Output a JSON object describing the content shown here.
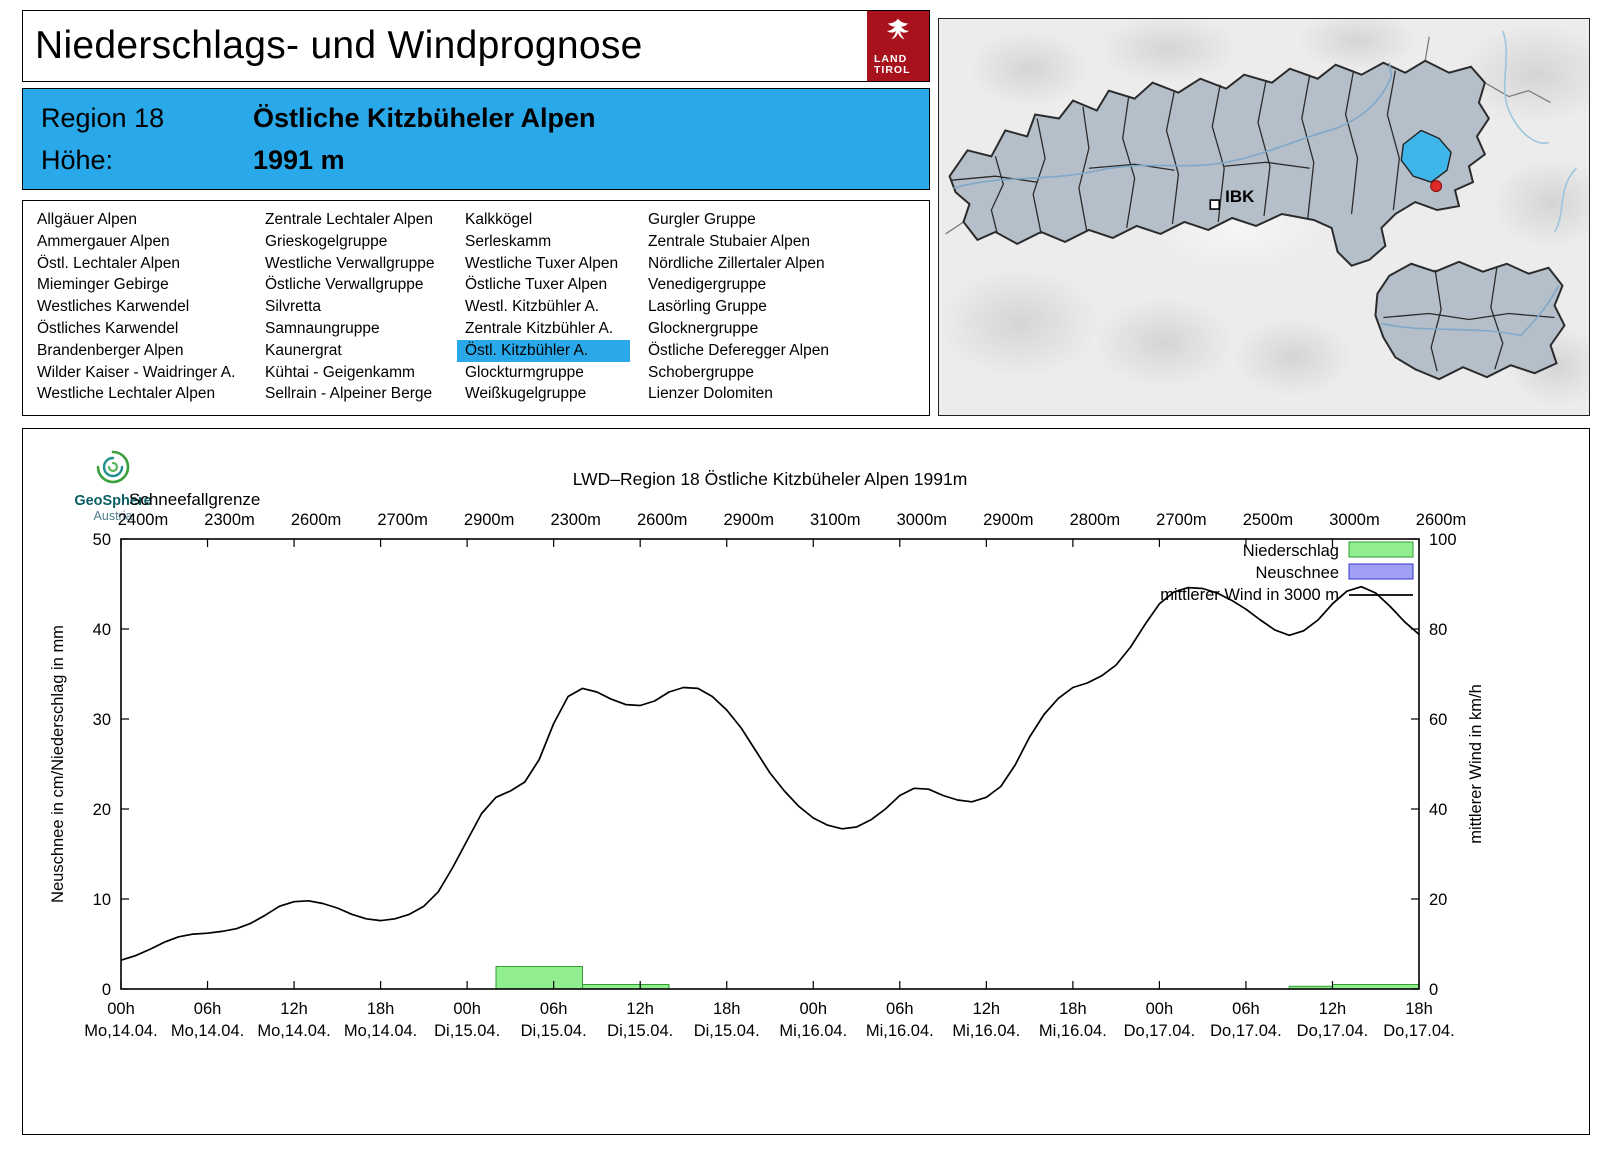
{
  "header": {
    "title": "Niederschlags- und Windprognose",
    "logo_line1": "LAND",
    "logo_line2": "TIROL"
  },
  "region_info": {
    "region_label": "Region 18",
    "region_name": "Östliche Kitzbüheler Alpen",
    "elevation_label": "Höhe:",
    "elevation_value": "1991 m"
  },
  "region_list": {
    "selected_col": 2,
    "selected_row": 6,
    "columns": [
      [
        "Allgäuer Alpen",
        "Ammergauer Alpen",
        "Östl. Lechtaler Alpen",
        "Mieminger Gebirge",
        "Westliches Karwendel",
        "Östliches Karwendel",
        "Brandenberger Alpen",
        "Wilder Kaiser - Waidringer A.",
        "Westliche Lechtaler Alpen"
      ],
      [
        "Zentrale Lechtaler Alpen",
        "Grieskogelgruppe",
        "Westliche Verwallgruppe",
        "Östliche Verwallgruppe",
        "Silvretta",
        "Samnaungruppe",
        "Kaunergrat",
        "Kühtai - Geigenkamm",
        "Sellrain - Alpeiner Berge"
      ],
      [
        "Kalkkögel",
        "Serleskamm",
        "Westliche Tuxer Alpen",
        "Östliche Tuxer Alpen",
        "Westl. Kitzbühler A.",
        "Zentrale Kitzbühler A.",
        "Östl. Kitzbühler A.",
        "Glockturmgruppe",
        "Weißkugelgruppe"
      ],
      [
        "Gurgler Gruppe",
        "Zentrale Stubaier Alpen",
        "Nördliche Zillertaler Alpen",
        "Venedigergruppe",
        "Lasörling Gruppe",
        "Glocknergruppe",
        "Östliche Deferegger Alpen",
        "Schobergruppe",
        "Lienzer Dolomiten"
      ]
    ]
  },
  "map": {
    "city_label": "IBK"
  },
  "branding": {
    "geosphere_name": "GeoSphere",
    "geosphere_country": "Austria"
  },
  "chart_data": {
    "type": "line+bar",
    "title": "LWD–Region 18 Östliche Kitzbüheler Alpen 1991m",
    "snowline_label": "Schneefallgrenze",
    "snowline_values": [
      "2400m",
      "2300m",
      "2600m",
      "2700m",
      "2900m",
      "2300m",
      "2600m",
      "2900m",
      "3100m",
      "3000m",
      "2900m",
      "2800m",
      "2700m",
      "2500m",
      "3000m",
      "2600m"
    ],
    "ylabel_left": "Neuschnee in cm/Niederschlag in mm",
    "ylabel_right": "mittlerer Wind in km/h",
    "ylim_left": [
      0,
      50
    ],
    "ylim_right": [
      0,
      100
    ],
    "yticks_left": [
      0,
      10,
      20,
      30,
      40,
      50
    ],
    "yticks_right": [
      0,
      20,
      40,
      60,
      80,
      100
    ],
    "grid": false,
    "legend_position": "top-right",
    "x_ticks": [
      {
        "time": "00h",
        "date": "Mo,14.04."
      },
      {
        "time": "06h",
        "date": "Mo,14.04."
      },
      {
        "time": "12h",
        "date": "Mo,14.04."
      },
      {
        "time": "18h",
        "date": "Mo,14.04."
      },
      {
        "time": "00h",
        "date": "Di,15.04."
      },
      {
        "time": "06h",
        "date": "Di,15.04."
      },
      {
        "time": "12h",
        "date": "Di,15.04."
      },
      {
        "time": "18h",
        "date": "Di,15.04."
      },
      {
        "time": "00h",
        "date": "Mi,16.04."
      },
      {
        "time": "06h",
        "date": "Mi,16.04."
      },
      {
        "time": "12h",
        "date": "Mi,16.04."
      },
      {
        "time": "18h",
        "date": "Mi,16.04."
      },
      {
        "time": "00h",
        "date": "Do,17.04."
      },
      {
        "time": "06h",
        "date": "Do,17.04."
      },
      {
        "time": "12h",
        "date": "Do,17.04."
      },
      {
        "time": "18h",
        "date": "Do,17.04."
      }
    ],
    "legend": [
      {
        "label": "Niederschlag",
        "type": "bar",
        "fill": "#90ee90",
        "stroke": "#2f9e2f"
      },
      {
        "label": "Neuschnee",
        "type": "bar",
        "fill": "#a0a0f5",
        "stroke": "#3535c8"
      },
      {
        "label": "mittlerer Wind in 3000 m",
        "type": "line",
        "stroke": "#000000"
      }
    ],
    "colors": {
      "precip_fill": "#90ee90",
      "precip_stroke": "#2f9e2f",
      "neuschnee_fill": "#a0a0f5",
      "neuschnee_stroke": "#3535c8",
      "wind": "#000000"
    },
    "precip_bars": [
      {
        "start_h": 26,
        "end_h": 32,
        "mm": 2.5
      },
      {
        "start_h": 32,
        "end_h": 38,
        "mm": 0.5
      },
      {
        "start_h": 81,
        "end_h": 84,
        "mm": 0.3
      },
      {
        "start_h": 84,
        "end_h": 90,
        "mm": 0.5
      }
    ],
    "neuschnee_bars": [],
    "wind_series": {
      "name": "mittlerer Wind in 3000 m",
      "unit": "km/h",
      "start_hour": 0,
      "step_hours": 1,
      "values_kmh": [
        6.4,
        7.4,
        8.8,
        10.4,
        11.6,
        12.2,
        12.4,
        12.8,
        13.4,
        14.6,
        16.4,
        18.4,
        19.4,
        19.6,
        19.0,
        18.0,
        16.6,
        15.6,
        15.2,
        15.6,
        16.6,
        18.4,
        21.6,
        27.0,
        33.0,
        39.0,
        42.6,
        44.0,
        46.0,
        51.0,
        59.0,
        65.0,
        66.8,
        66.0,
        64.4,
        63.2,
        63.0,
        64.0,
        66.0,
        67.0,
        66.8,
        65.0,
        62.0,
        58.0,
        53.0,
        48.0,
        44.0,
        40.6,
        38.0,
        36.4,
        35.6,
        36.0,
        37.6,
        40.0,
        43.0,
        44.6,
        44.4,
        43.0,
        42.0,
        41.6,
        42.6,
        45.0,
        49.8,
        56.0,
        61.0,
        64.6,
        67.0,
        68.0,
        69.6,
        72.0,
        76.0,
        81.0,
        85.6,
        88.2,
        89.2,
        89.0,
        88.0,
        86.4,
        84.4,
        82.0,
        79.8,
        78.6,
        79.6,
        82.0,
        85.6,
        88.4,
        89.4,
        88.0,
        85.0,
        81.6,
        78.8
      ]
    }
  }
}
